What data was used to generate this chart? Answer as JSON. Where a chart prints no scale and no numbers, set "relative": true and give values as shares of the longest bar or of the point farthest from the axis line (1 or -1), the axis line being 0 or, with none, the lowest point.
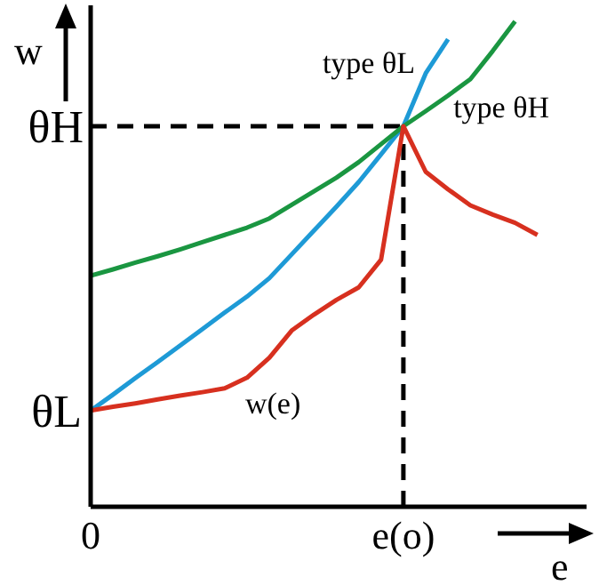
{
  "chart_data": {
    "type": "line",
    "relative": true,
    "xlabel": "e",
    "ylabel": "w",
    "categories": [
      "0",
      null,
      null,
      null,
      null,
      null,
      null,
      null,
      null,
      null,
      null,
      null,
      null,
      null,
      "e(o)",
      null,
      null,
      null,
      null,
      null,
      null
    ],
    "series": [
      {
        "name": "type θL",
        "color": "#1e9ad6",
        "values": [
          0.198,
          0.231,
          0.265,
          0.298,
          0.332,
          0.366,
          0.4,
          0.433,
          0.471,
          0.52,
          0.569,
          0.618,
          0.669,
          0.726,
          0.784,
          0.893,
          0.963,
          null,
          null,
          null,
          null
        ]
      },
      {
        "name": "type θH",
        "color": "#1a9641",
        "values": [
          0.476,
          0.489,
          0.503,
          0.516,
          0.53,
          0.545,
          0.56,
          0.575,
          0.594,
          0.622,
          0.65,
          0.678,
          0.71,
          0.747,
          0.784,
          0.815,
          0.847,
          0.881,
          0.939,
          1,
          null
        ]
      },
      {
        "name": "w(e)",
        "color": "#d7301f",
        "values": [
          0.198,
          0.206,
          0.213,
          0.221,
          0.229,
          0.236,
          0.244,
          0.266,
          0.307,
          0.363,
          0.396,
          0.426,
          0.452,
          0.509,
          0.784,
          0.69,
          0.654,
          0.621,
          0.602,
          0.585,
          0.56
        ]
      }
    ],
    "ref_lines": [
      {
        "axis": "y",
        "value": 0.784,
        "label": "θH",
        "line_style": "dashed",
        "color": "#000000"
      },
      {
        "axis": "x",
        "value": "e(o)",
        "line_style": "dashed",
        "color": "#000000"
      }
    ],
    "annotations": [
      "θL"
    ],
    "grid": false,
    "legend": false,
    "marker": "none",
    "line_style": "solid"
  }
}
